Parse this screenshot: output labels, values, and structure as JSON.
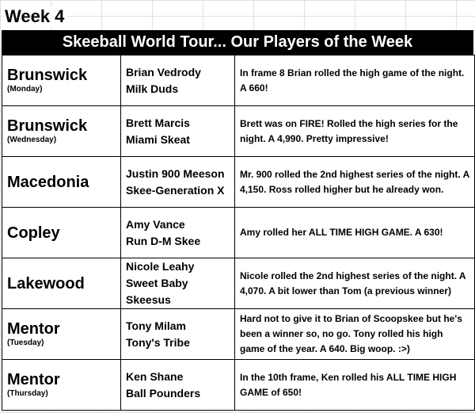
{
  "week_label": "Week 4",
  "banner_title": "Skeeball World Tour... Our Players of the Week",
  "rows": [
    {
      "location": "Brunswick",
      "day": "(Monday)",
      "players": [
        "Brian Vedrody",
        "Milk Duds"
      ],
      "note": "In frame 8 Brian rolled the high game of the night.  A 660!"
    },
    {
      "location": "Brunswick",
      "day": "(Wednesday)",
      "players": [
        "Brett Marcis",
        "Miami Skeat"
      ],
      "note": "Brett was on FIRE!  Rolled the high series for the night.  A 4,990.  Pretty impressive!"
    },
    {
      "location": "Macedonia",
      "day": "",
      "players": [
        "Justin 900 Meeson",
        "Skee-Generation X"
      ],
      "note": "Mr. 900 rolled the 2nd highest series of the night.  A 4,150.  Ross rolled higher but he already won."
    },
    {
      "location": "Copley",
      "day": "",
      "players": [
        "Amy Vance",
        "Run D-M Skee"
      ],
      "note": "Amy rolled her ALL TIME HIGH GAME. A 630!"
    },
    {
      "location": "Lakewood",
      "day": "",
      "players": [
        "Nicole Leahy",
        "Sweet Baby",
        "Skeesus"
      ],
      "note": "Nicole rolled the 2nd highest series of the night.  A 4,070.  A bit lower than Tom (a previous winner)"
    },
    {
      "location": "Mentor",
      "day": "(Tuesday)",
      "players": [
        "Tony Milam",
        "Tony's Tribe"
      ],
      "note": "Hard not to give it to Brian of Scoopskee  but he's been a winner so, no go.  Tony rolled his high game of the year.  A 640.  Big woop. :>)"
    },
    {
      "location": "Mentor",
      "day": "(Thursday)",
      "players": [
        "Ken Shane",
        "Ball Pounders"
      ],
      "note": "In the 10th frame, Ken rolled his ALL TIME HIGH GAME of 650!"
    }
  ]
}
